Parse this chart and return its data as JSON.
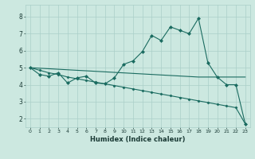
{
  "xlabel": "Humidex (Indice chaleur)",
  "bg_color": "#cce8e0",
  "grid_color": "#aacfc8",
  "line_color": "#1a6b60",
  "xlim": [
    -0.5,
    23.5
  ],
  "ylim": [
    1.5,
    8.7
  ],
  "xticks": [
    0,
    1,
    2,
    3,
    4,
    5,
    6,
    7,
    8,
    9,
    10,
    11,
    12,
    13,
    14,
    15,
    16,
    17,
    18,
    19,
    20,
    21,
    22,
    23
  ],
  "yticks": [
    2,
    3,
    4,
    5,
    6,
    7,
    8
  ],
  "line1_x": [
    0,
    1,
    2,
    3,
    4,
    5,
    6,
    7,
    8,
    9,
    10,
    11,
    12,
    13,
    14,
    15,
    16,
    17,
    18,
    19,
    20,
    21,
    22,
    23
  ],
  "line1_y": [
    5.0,
    4.6,
    4.5,
    4.7,
    4.1,
    4.4,
    4.5,
    4.1,
    4.05,
    4.4,
    5.2,
    5.4,
    5.95,
    6.9,
    6.6,
    7.4,
    7.2,
    7.0,
    7.9,
    5.3,
    4.45,
    4.0,
    4.0,
    1.7
  ],
  "line2_x": [
    0,
    18,
    23
  ],
  "line2_y": [
    5.0,
    4.45,
    4.45
  ],
  "line3_x": [
    0,
    1,
    2,
    3,
    4,
    5,
    6,
    7,
    8,
    9,
    10,
    11,
    12,
    13,
    14,
    15,
    16,
    17,
    18,
    19,
    20,
    21,
    22,
    23
  ],
  "line3_y": [
    5.0,
    4.85,
    4.7,
    4.6,
    4.45,
    4.35,
    4.25,
    4.15,
    4.05,
    3.95,
    3.85,
    3.75,
    3.65,
    3.55,
    3.45,
    3.35,
    3.25,
    3.15,
    3.05,
    2.95,
    2.85,
    2.75,
    2.65,
    1.7
  ]
}
